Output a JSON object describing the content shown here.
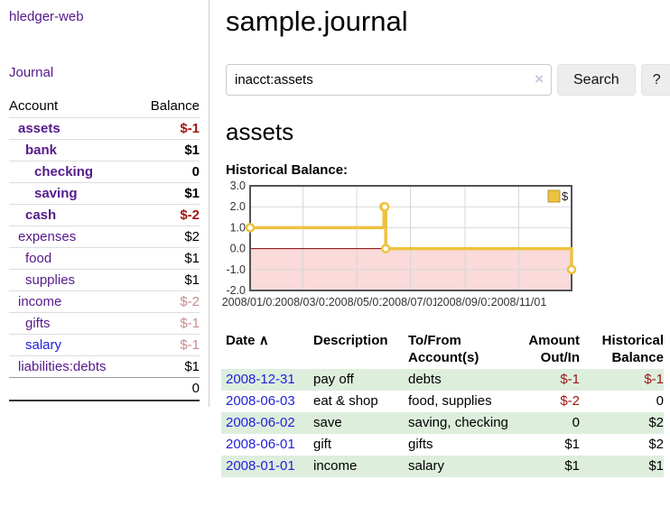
{
  "app": {
    "title": "hledger-web"
  },
  "nav": {
    "journal": "Journal"
  },
  "sidebar": {
    "col_account": "Account",
    "col_balance": "Balance",
    "accounts": [
      {
        "name": "assets",
        "balance": "$-1"
      },
      {
        "name": "bank",
        "balance": "$1"
      },
      {
        "name": "checking",
        "balance": "0"
      },
      {
        "name": "saving",
        "balance": "$1"
      },
      {
        "name": "cash",
        "balance": "$-2"
      },
      {
        "name": "expenses",
        "balance": "$2"
      },
      {
        "name": "food",
        "balance": "$1"
      },
      {
        "name": "supplies",
        "balance": "$1"
      },
      {
        "name": "income",
        "balance": "$-2"
      },
      {
        "name": "gifts",
        "balance": "$-1"
      },
      {
        "name": "salary",
        "balance": "$-1"
      },
      {
        "name": "liabilities:debts",
        "balance": "$1"
      }
    ],
    "total": "0"
  },
  "header": {
    "title": "sample.journal"
  },
  "search": {
    "value": "inacct:assets",
    "clear_icon": "×",
    "button_label": "Search",
    "help_label": "?"
  },
  "account_page": {
    "heading": "assets",
    "chart_title": "Historical Balance:"
  },
  "chart_data": {
    "type": "line",
    "step": true,
    "title": "Historical Balance:",
    "legend": "$",
    "legend_position": "top-right",
    "series": [
      {
        "name": "$",
        "points": [
          [
            "2008-01-01",
            1
          ],
          [
            "2008-06-01",
            2
          ],
          [
            "2008-06-02",
            2
          ],
          [
            "2008-06-03",
            0
          ],
          [
            "2008-12-31",
            -1
          ]
        ]
      }
    ],
    "xrange": [
      "2008-01-01",
      "2008-12-31"
    ],
    "xticks": [
      "2008/01/01",
      "2008/03/01",
      "2008/05/01",
      "2008/07/01",
      "2008/09/01",
      "2008/11/01"
    ],
    "ylim": [
      -2,
      3
    ],
    "yticks": [
      "3.0",
      "2.0",
      "1.0",
      "0.0",
      "-1.0",
      "-2.0"
    ],
    "grid": true,
    "colors": {
      "line": "#edc240",
      "marker_fill": "#ffffff",
      "legend_swatch_border": "#b89b2d",
      "negative_region_fill": "#fadada",
      "zero_line": "#800000",
      "gridline": "#d7d7d7",
      "plot_border": "#545454",
      "tick_text": "#333333"
    }
  },
  "register": {
    "headers": {
      "date": "Date",
      "sort_icon": "∧",
      "description": "Description",
      "accounts": "To/From Account(s)",
      "amount": "Amount Out/In",
      "balance": "Historical Balance"
    },
    "rows": [
      {
        "date": "2008-12-31",
        "description": "pay off",
        "accounts": "debts",
        "amount": "$-1",
        "balance": "$-1"
      },
      {
        "date": "2008-06-03",
        "description": "eat & shop",
        "accounts": "food, supplies",
        "amount": "$-2",
        "balance": "0"
      },
      {
        "date": "2008-06-02",
        "description": "save",
        "accounts": "saving, checking",
        "amount": "0",
        "balance": "$2"
      },
      {
        "date": "2008-06-01",
        "description": "gift",
        "accounts": "gifts",
        "amount": "$1",
        "balance": "$2"
      },
      {
        "date": "2008-01-01",
        "description": "income",
        "accounts": "salary",
        "amount": "$1",
        "balance": "$1"
      }
    ]
  }
}
